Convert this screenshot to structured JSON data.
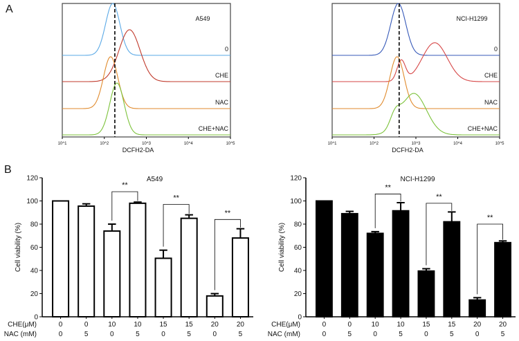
{
  "panel_labels": [
    "A",
    "B"
  ],
  "chart_data": [
    {
      "type": "histogram-overlay",
      "title": "A549",
      "xlabel": "DCFH2-DA",
      "xscale": "log",
      "xlim": [
        10,
        100000
      ],
      "xticks": [
        "10^1",
        "10^2",
        "10^3",
        "10^4",
        "10^5"
      ],
      "reference_line_log10": 2.25,
      "series": [
        {
          "name": "0",
          "color": "#5aa9e6",
          "peak_log10": 2.2,
          "spread": 0.17
        },
        {
          "name": "CHE",
          "color": "#c0392b",
          "peak_log10": 2.6,
          "spread": 0.25
        },
        {
          "name": "NAC",
          "color": "#e08a2c",
          "peak_log10": 2.15,
          "spread": 0.17
        },
        {
          "name": "CHE+NAC",
          "color": "#7cc23a",
          "peak_log10": 2.3,
          "spread": 0.17
        }
      ]
    },
    {
      "type": "histogram-overlay",
      "title": "NCI-H1299",
      "xlabel": "DCFH2-DA",
      "xscale": "log",
      "xlim": [
        10,
        100000
      ],
      "xticks": [
        "10^1",
        "10^2",
        "10^3",
        "10^4",
        "10^5"
      ],
      "reference_line_log10": 2.6,
      "series": [
        {
          "name": "0",
          "color": "#3558b8",
          "peak_log10": 2.58,
          "spread": 0.18
        },
        {
          "name": "CHE",
          "color": "#d64545",
          "peak_log10": 3.45,
          "spread": 0.3
        },
        {
          "name": "NAC",
          "color": "#e08a2c",
          "peak_log10": 2.55,
          "spread": 0.17
        },
        {
          "name": "CHE+NAC",
          "color": "#7cc23a",
          "peak_log10": 2.95,
          "spread": 0.3
        }
      ]
    },
    {
      "type": "bar",
      "title": "A549",
      "ylabel": "Cell viability (%)",
      "ylim": [
        0,
        120
      ],
      "yticks": [
        0,
        20,
        40,
        60,
        80,
        100,
        120
      ],
      "fill": "#ffffff",
      "row_labels": [
        "CHE(μM)",
        "NAC (mM)"
      ],
      "che": [
        "0",
        "0",
        "10",
        "10",
        "15",
        "15",
        "20",
        "20"
      ],
      "nac": [
        "0",
        "5",
        "0",
        "5",
        "0",
        "5",
        "0",
        "5"
      ],
      "values": [
        100,
        95.5,
        74,
        98,
        50.5,
        85,
        18,
        68
      ],
      "errors": [
        0,
        2,
        6,
        1,
        7,
        3,
        2,
        8
      ],
      "significance": [
        {
          "pair": [
            2,
            3
          ],
          "label": "**",
          "level": 108
        },
        {
          "pair": [
            4,
            5
          ],
          "label": "**",
          "level": 97
        },
        {
          "pair": [
            6,
            7
          ],
          "label": "**",
          "level": 84
        }
      ]
    },
    {
      "type": "bar",
      "title": "NCI-H1299",
      "ylabel": "Cell viability (%)",
      "ylim": [
        0,
        120
      ],
      "yticks": [
        0,
        20,
        40,
        60,
        80,
        100,
        120
      ],
      "fill": "#000000",
      "row_labels": [
        "CHE(μM)",
        "NAC (mM)"
      ],
      "che": [
        "0",
        "0",
        "10",
        "10",
        "15",
        "15",
        "20",
        "20"
      ],
      "nac": [
        "0",
        "5",
        "0",
        "5",
        "0",
        "5",
        "0",
        "5"
      ],
      "values": [
        100,
        89,
        72,
        91.5,
        39.5,
        82,
        14.5,
        64
      ],
      "errors": [
        0,
        2,
        1.5,
        7,
        2,
        8.5,
        2,
        1.5
      ],
      "significance": [
        {
          "pair": [
            2,
            3
          ],
          "label": "**",
          "level": 106
        },
        {
          "pair": [
            4,
            5
          ],
          "label": "**",
          "level": 98
        },
        {
          "pair": [
            6,
            7
          ],
          "label": "**",
          "level": 80
        }
      ]
    }
  ]
}
